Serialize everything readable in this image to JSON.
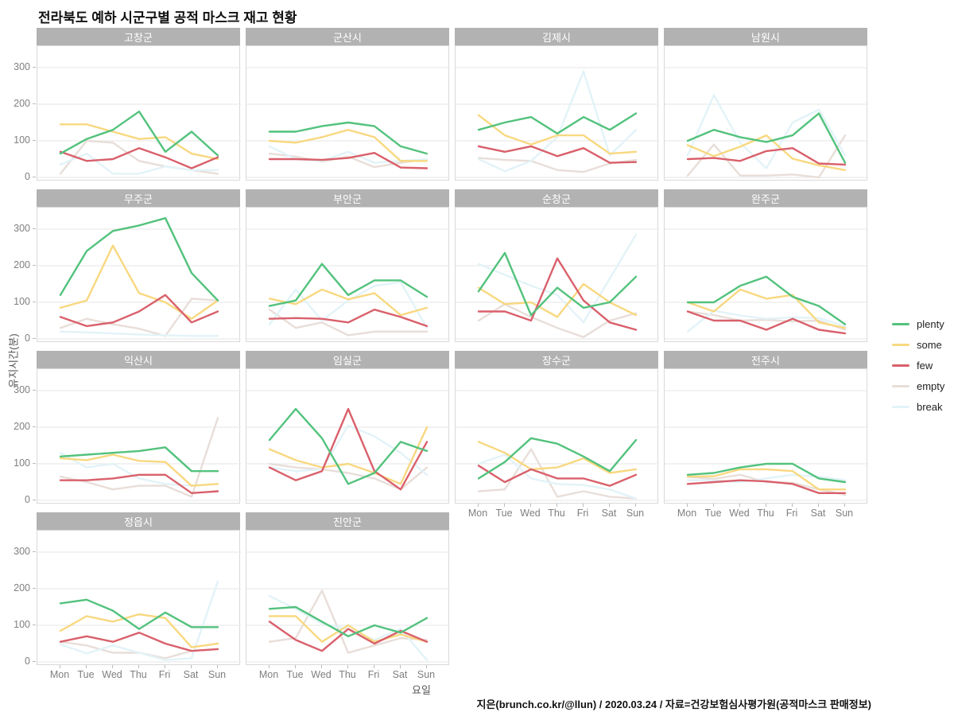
{
  "title": "전라북도 예하 시군구별 공적 마스크 재고 현황",
  "caption": "지은(brunch.co.kr/@llun) / 2020.03.24 / 자료=건강보험심사평가원(공적마스크 판매정보)",
  "chart_data": {
    "type": "line",
    "facet_layout": {
      "columns": 4,
      "rows": 4
    },
    "x": [
      "Mon",
      "Tue",
      "Wed",
      "Thu",
      "Fri",
      "Sat",
      "Sun"
    ],
    "xlabel": "요일",
    "ylabel": "유지시간(분)",
    "yticks": [
      0,
      100,
      200,
      300
    ],
    "ylim": [
      0,
      350
    ],
    "grid": "horizontal-major-only",
    "legend_position": "right",
    "legend": [
      {
        "name": "plenty",
        "label": "plenty",
        "color": "#53c27d"
      },
      {
        "name": "some",
        "label": "some",
        "color": "#f8d880"
      },
      {
        "name": "few",
        "label": "few",
        "color": "#d9606b"
      },
      {
        "name": "empty",
        "label": "empty",
        "color": "#e8ded9"
      },
      {
        "name": "break",
        "label": "break",
        "color": "#e2f3f8"
      }
    ],
    "draw_order": [
      "empty",
      "break",
      "some",
      "few",
      "plenty"
    ],
    "facets": [
      {
        "name": "고창군",
        "series": {
          "plenty": [
            65,
            105,
            130,
            180,
            70,
            125,
            60
          ],
          "some": [
            145,
            145,
            125,
            105,
            110,
            65,
            50
          ],
          "few": [
            70,
            45,
            50,
            80,
            55,
            25,
            55
          ],
          "empty": [
            10,
            100,
            95,
            45,
            30,
            20,
            10
          ],
          "break": [
            35,
            65,
            10,
            10,
            30,
            20,
            20
          ]
        }
      },
      {
        "name": "군산시",
        "series": {
          "plenty": [
            125,
            125,
            140,
            150,
            140,
            85,
            65
          ],
          "some": [
            100,
            95,
            110,
            130,
            110,
            45,
            45
          ],
          "few": [
            50,
            50,
            48,
            53,
            67,
            27,
            25
          ],
          "empty": [
            65,
            57,
            43,
            57,
            28,
            40,
            50
          ],
          "break": [
            85,
            50,
            45,
            70,
            40,
            45,
            50
          ]
        }
      },
      {
        "name": "김제시",
        "series": {
          "plenty": [
            130,
            150,
            165,
            120,
            165,
            130,
            175
          ],
          "some": [
            170,
            115,
            90,
            115,
            115,
            65,
            70
          ],
          "few": [
            85,
            70,
            85,
            58,
            80,
            40,
            42
          ],
          "empty": [
            53,
            48,
            45,
            20,
            15,
            38,
            48
          ],
          "break": [
            50,
            17,
            45,
            110,
            290,
            60,
            130
          ]
        }
      },
      {
        "name": "남원시",
        "series": {
          "plenty": [
            100,
            130,
            110,
            97,
            115,
            175,
            40
          ],
          "some": [
            88,
            58,
            84,
            115,
            51,
            33,
            20
          ],
          "few": [
            50,
            53,
            45,
            72,
            80,
            38,
            35
          ],
          "empty": [
            5,
            90,
            5,
            5,
            8,
            0,
            115
          ],
          "break": [
            60,
            225,
            95,
            25,
            150,
            185,
            60
          ]
        }
      },
      {
        "name": "무주군",
        "series": {
          "plenty": [
            120,
            240,
            295,
            310,
            330,
            180,
            105
          ],
          "some": [
            85,
            105,
            255,
            125,
            100,
            55,
            105
          ],
          "few": [
            60,
            35,
            45,
            75,
            120,
            45,
            75
          ],
          "empty": [
            30,
            55,
            40,
            28,
            8,
            110,
            105
          ],
          "break": [
            20,
            18,
            15,
            12,
            10,
            8,
            8
          ]
        }
      },
      {
        "name": "부안군",
        "series": {
          "plenty": [
            90,
            105,
            205,
            120,
            160,
            160,
            115
          ],
          "some": [
            110,
            95,
            135,
            108,
            125,
            65,
            85
          ],
          "few": [
            55,
            57,
            55,
            45,
            80,
            60,
            35
          ],
          "empty": [
            80,
            30,
            45,
            10,
            20,
            20,
            20
          ],
          "break": [
            40,
            135,
            50,
            105,
            145,
            155,
            30
          ]
        }
      },
      {
        "name": "순창군",
        "series": {
          "plenty": [
            130,
            235,
            65,
            140,
            85,
            100,
            170
          ],
          "some": [
            140,
            95,
            100,
            60,
            150,
            100,
            65
          ],
          "few": [
            75,
            75,
            50,
            220,
            105,
            45,
            25
          ],
          "empty": [
            50,
            95,
            60,
            30,
            5,
            50,
            70
          ],
          "break": [
            205,
            175,
            145,
            120,
            45,
            165,
            285
          ]
        }
      },
      {
        "name": "완주군",
        "series": {
          "plenty": [
            100,
            100,
            145,
            170,
            115,
            90,
            40
          ],
          "some": [
            100,
            75,
            135,
            110,
            120,
            45,
            30
          ],
          "few": [
            75,
            50,
            50,
            25,
            55,
            25,
            15
          ],
          "empty": [
            75,
            65,
            50,
            52,
            48,
            50,
            25
          ],
          "break": [
            20,
            77,
            64,
            55,
            59,
            57,
            35
          ]
        }
      },
      {
        "name": "익산시",
        "series": {
          "plenty": [
            120,
            125,
            130,
            135,
            145,
            80,
            80
          ],
          "some": [
            115,
            110,
            125,
            108,
            105,
            40,
            45
          ],
          "few": [
            55,
            55,
            60,
            70,
            70,
            20,
            25
          ],
          "empty": [
            65,
            50,
            30,
            40,
            40,
            10,
            225
          ],
          "break": [
            130,
            90,
            100,
            60,
            45,
            40,
            45
          ]
        }
      },
      {
        "name": "임실군",
        "series": {
          "plenty": [
            165,
            250,
            170,
            45,
            75,
            160,
            135
          ],
          "some": [
            140,
            110,
            90,
            100,
            75,
            45,
            200
          ],
          "few": [
            90,
            55,
            80,
            250,
            80,
            30,
            160
          ],
          "empty": [
            100,
            90,
            85,
            75,
            60,
            30,
            90
          ],
          "break": [
            90,
            80,
            85,
            205,
            175,
            130,
            70
          ]
        }
      },
      {
        "name": "장수군",
        "series": {
          "plenty": [
            60,
            105,
            170,
            155,
            120,
            80,
            165
          ],
          "some": [
            160,
            130,
            85,
            90,
            115,
            75,
            85
          ],
          "few": [
            95,
            50,
            85,
            60,
            60,
            40,
            70
          ],
          "empty": [
            25,
            30,
            140,
            10,
            25,
            10,
            5
          ],
          "break": [
            100,
            125,
            60,
            45,
            42,
            30,
            5
          ]
        }
      },
      {
        "name": "전주시",
        "series": {
          "plenty": [
            70,
            75,
            90,
            100,
            100,
            60,
            50
          ],
          "some": [
            65,
            66,
            85,
            85,
            80,
            30,
            30
          ],
          "few": [
            45,
            50,
            55,
            52,
            45,
            20,
            20
          ],
          "empty": [
            64,
            59,
            70,
            50,
            48,
            30,
            15
          ],
          "break": [
            55,
            55,
            50,
            60,
            70,
            65,
            55
          ]
        }
      },
      {
        "name": "정읍시",
        "series": {
          "plenty": [
            160,
            170,
            140,
            90,
            135,
            95,
            95
          ],
          "some": [
            85,
            125,
            110,
            130,
            120,
            40,
            50
          ],
          "few": [
            55,
            70,
            55,
            80,
            50,
            30,
            35
          ],
          "empty": [
            55,
            45,
            25,
            25,
            10,
            30,
            35
          ],
          "break": [
            48,
            23,
            45,
            25,
            5,
            10,
            220
          ]
        }
      },
      {
        "name": "진안군",
        "series": {
          "plenty": [
            145,
            150,
            110,
            70,
            100,
            80,
            120
          ],
          "some": [
            125,
            125,
            55,
            100,
            55,
            75,
            55
          ],
          "few": [
            110,
            60,
            30,
            90,
            50,
            85,
            55
          ],
          "empty": [
            55,
            65,
            195,
            25,
            45,
            65,
            60
          ],
          "break": [
            180,
            145,
            105,
            90,
            60,
            90,
            5
          ]
        }
      }
    ]
  }
}
